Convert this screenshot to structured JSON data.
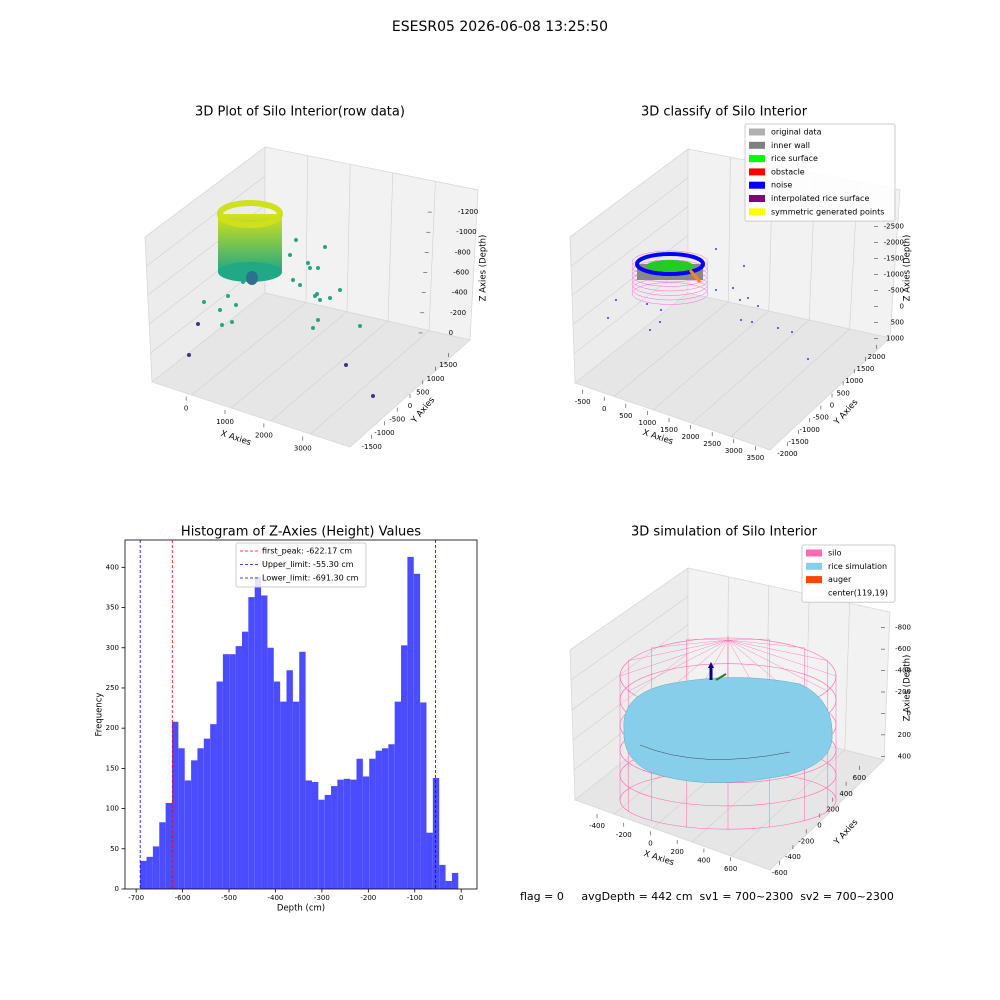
{
  "title": "ESESR05 2026-06-08 13:25:50",
  "footer": "flag = 0     avgDepth = 442 cm  sv1 = 700~2300  sv2 = 700~2300",
  "chart_data": [
    {
      "type": "scatter3d",
      "title": "3D Plot of Silo Interior(row data)",
      "xlabel": "X Axies",
      "ylabel": "Y Axies",
      "zlabel": "Z Axies (Depth)",
      "xlim": [
        -800,
        3700
      ],
      "ylim": [
        -1800,
        1800
      ],
      "zlim": [
        -1350,
        80
      ],
      "xticks": [
        0,
        1000,
        2000,
        3000
      ],
      "yticks": [
        -1500,
        -1000,
        -500,
        0,
        500,
        1000,
        1500
      ],
      "zticks": [
        0,
        -200,
        -400,
        -600,
        -800,
        -1000,
        -1200
      ]
    },
    {
      "type": "scatter3d",
      "title": "3D classify of Silo Interior",
      "xlabel": "X Axies",
      "ylabel": "Y Axies",
      "zlabel": "Z Axies (Depth)",
      "xlim": [
        -700,
        3700
      ],
      "ylim": [
        -2200,
        2200
      ],
      "zlim": [
        -2800,
        1200
      ],
      "xticks": [
        -500,
        0,
        500,
        1000,
        1500,
        2000,
        2500,
        3000,
        3500
      ],
      "yticks": [
        -2000,
        -1500,
        -1000,
        -500,
        0,
        500,
        1000,
        1500,
        2000
      ],
      "zticks": [
        1000,
        500,
        0,
        -500,
        -1000,
        -1500,
        -2000,
        -2500
      ],
      "series": [
        {
          "name": "original data",
          "color": "#b0b0b0"
        },
        {
          "name": "inner wall",
          "color": "#808080"
        },
        {
          "name": "rice surface",
          "color": "#00ff00"
        },
        {
          "name": "obstacle",
          "color": "#ff0000"
        },
        {
          "name": "noise",
          "color": "#0000ff"
        },
        {
          "name": "interpolated rice surface",
          "color": "#800080"
        },
        {
          "name": "symmetric generated points",
          "color": "#ffff00"
        }
      ]
    },
    {
      "type": "histogram",
      "title": "Histogram of Z-Axies (Height) Values",
      "xlabel": "Depth (cm)",
      "ylabel": "Frequency",
      "color": "#4c4cff",
      "bins": [
        -691.3,
        -677.6,
        -663.9,
        -650.2,
        -636.5,
        -622.8,
        -609.1,
        -595.4,
        -581.7,
        -568.0,
        -554.3,
        -540.6,
        -526.9,
        -513.2,
        -499.5,
        -485.8,
        -472.1,
        -458.4,
        -444.7,
        -431.0,
        -417.3,
        -403.6,
        -389.9,
        -376.2,
        -362.5,
        -348.8,
        -335.1,
        -321.4,
        -307.7,
        -294.0,
        -280.3,
        -266.6,
        -252.9,
        -239.2,
        -225.5,
        -211.8,
        -198.1,
        -184.4,
        -170.7,
        -157.0,
        -143.3,
        -129.6,
        -115.9,
        -102.2,
        -88.5,
        -74.8,
        -61.1,
        -47.4,
        -33.7,
        -20.0,
        -6.3
      ],
      "counts": [
        35,
        40,
        53,
        83,
        107,
        208,
        175,
        135,
        160,
        175,
        187,
        205,
        258,
        292,
        292,
        302,
        320,
        363,
        388,
        365,
        300,
        258,
        233,
        272,
        233,
        295,
        135,
        133,
        111,
        117,
        128,
        136,
        137,
        136,
        162,
        140,
        162,
        172,
        175,
        180,
        233,
        303,
        413,
        392,
        232,
        70,
        138,
        30,
        10,
        20
      ],
      "xlim": [
        -724,
        34
      ],
      "ylim": [
        0,
        434
      ],
      "xticks": [
        -700,
        -600,
        -500,
        -400,
        -300,
        -200,
        -100,
        0
      ],
      "yticks": [
        0,
        50,
        100,
        150,
        200,
        250,
        300,
        350,
        400
      ],
      "vlines": [
        {
          "name": "first_peak: -622.17 cm",
          "value": -622.17,
          "color": "#ff0000"
        },
        {
          "name": "Upper_limit: -55.30 cm",
          "value": -55.3,
          "color": "#0000ff"
        },
        {
          "name": "Lower_limit: -691.30 cm",
          "value": -691.3,
          "color": "#0000ff"
        }
      ]
    },
    {
      "type": "surface3d",
      "title": "3D simulation of Silo Interior",
      "xlabel": "X Axies",
      "ylabel": "Y Axies",
      "zlabel": "Z Axies (Depth)",
      "xlim": [
        -520,
        760
      ],
      "ylim": [
        -700,
        700
      ],
      "zlim": [
        -900,
        500
      ],
      "xticks": [
        -400,
        -200,
        0,
        200,
        400,
        600
      ],
      "yticks": [
        -600,
        -400,
        -200,
        0,
        200,
        400,
        600
      ],
      "zticks": [
        400,
        200,
        0,
        -200,
        -400,
        -600,
        -800
      ],
      "series": [
        {
          "name": "silo",
          "color": "#ff69b4"
        },
        {
          "name": "rice simulation",
          "color": "#87ceeb"
        },
        {
          "name": "auger",
          "color": "#ff4500"
        },
        {
          "name": "center(119,19)",
          "color": "#ffffff"
        }
      ]
    }
  ]
}
